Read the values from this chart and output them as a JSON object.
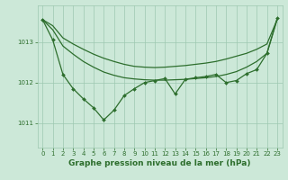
{
  "background_color": "#cce8d8",
  "grid_color": "#9dc8b0",
  "line_color": "#2d6e2d",
  "marker_color": "#2d6e2d",
  "xlabel": "Graphe pression niveau de la mer (hPa)",
  "xlabel_fontsize": 6.5,
  "xlim": [
    -0.5,
    23.5
  ],
  "ylim": [
    1010.4,
    1013.9
  ],
  "yticks": [
    1011,
    1012,
    1013
  ],
  "xticks": [
    0,
    1,
    2,
    3,
    4,
    5,
    6,
    7,
    8,
    9,
    10,
    11,
    12,
    13,
    14,
    15,
    16,
    17,
    18,
    19,
    20,
    21,
    22,
    23
  ],
  "series": [
    {
      "x": [
        0,
        1,
        2,
        3,
        4,
        5,
        6,
        7,
        8,
        9,
        10,
        11,
        12,
        13,
        14,
        15,
        16,
        17,
        18,
        19,
        20,
        21,
        22,
        23
      ],
      "y": [
        1013.55,
        1013.4,
        1013.1,
        1012.95,
        1012.82,
        1012.7,
        1012.6,
        1012.52,
        1012.45,
        1012.4,
        1012.38,
        1012.37,
        1012.38,
        1012.4,
        1012.42,
        1012.45,
        1012.48,
        1012.52,
        1012.58,
        1012.65,
        1012.72,
        1012.82,
        1012.95,
        1013.55
      ],
      "marker": false,
      "lw": 0.9
    },
    {
      "x": [
        0,
        1,
        2,
        3,
        4,
        5,
        6,
        7,
        8,
        9,
        10,
        11,
        12,
        13,
        14,
        15,
        16,
        17,
        18,
        19,
        20,
        21,
        22,
        23
      ],
      "y": [
        1013.55,
        1013.3,
        1012.9,
        1012.7,
        1012.52,
        1012.38,
        1012.26,
        1012.18,
        1012.12,
        1012.09,
        1012.07,
        1012.06,
        1012.06,
        1012.07,
        1012.08,
        1012.1,
        1012.12,
        1012.15,
        1012.2,
        1012.27,
        1012.38,
        1012.52,
        1012.72,
        1013.55
      ],
      "marker": false,
      "lw": 0.9
    },
    {
      "x": [
        0,
        1,
        2,
        3,
        4,
        5,
        6,
        7,
        8,
        9,
        10,
        11,
        12,
        13,
        14,
        15,
        16,
        17,
        18,
        19,
        20,
        21,
        22,
        23
      ],
      "y": [
        1013.55,
        1013.05,
        1012.2,
        1011.85,
        1011.6,
        1011.38,
        1011.08,
        1011.32,
        1011.68,
        1011.85,
        1012.0,
        1012.05,
        1012.1,
        1011.72,
        1012.08,
        1012.12,
        1012.15,
        1012.2,
        1012.0,
        1012.05,
        1012.22,
        1012.32,
        1012.72,
        1013.58
      ],
      "marker": true,
      "lw": 0.9
    }
  ]
}
